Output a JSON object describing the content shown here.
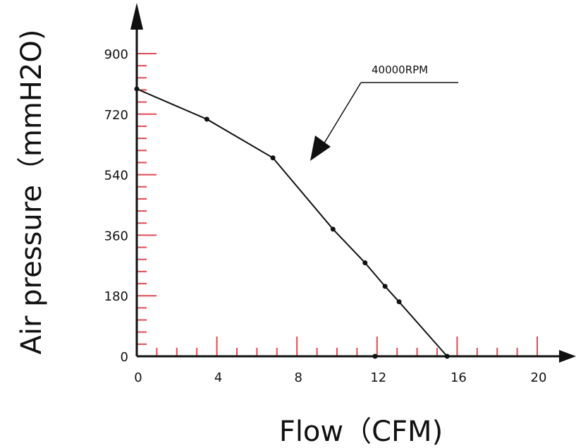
{
  "chart_data": {
    "type": "line",
    "xlabel": "Flow（CFM)",
    "ylabel": "Air pressure（mmH2O)",
    "xlim": [
      0,
      20
    ],
    "ylim": [
      0,
      900
    ],
    "x_ticks": [
      {
        "value": 0,
        "label": "0"
      },
      {
        "value": 4,
        "label": "4"
      },
      {
        "value": 8,
        "label": "8"
      },
      {
        "value": 12,
        "label": "12"
      },
      {
        "value": 16,
        "label": "16"
      },
      {
        "value": 20,
        "label": "20"
      }
    ],
    "y_ticks": [
      {
        "value": 0,
        "label": "0"
      },
      {
        "value": 180,
        "label": "180"
      },
      {
        "value": 360,
        "label": "360"
      },
      {
        "value": 540,
        "label": "540"
      },
      {
        "value": 720,
        "label": "720"
      },
      {
        "value": 900,
        "label": "900"
      }
    ],
    "series": [
      {
        "x": [
          0,
          3.5,
          6.8,
          9.8,
          11.4,
          12.4,
          13.1,
          15.5
        ],
        "y": [
          795,
          705,
          590,
          378,
          278,
          208,
          162,
          0
        ],
        "color": "#111111"
      }
    ],
    "annotations": [
      {
        "text": "40000RPM",
        "target_x": 8.5,
        "target_y": 590
      }
    ],
    "extra_markers": [
      {
        "x": 11.9,
        "y": 0
      }
    ],
    "grid": false,
    "colors": {
      "axis": "#111111",
      "tick": "#e04a55",
      "line": "#111111"
    }
  }
}
